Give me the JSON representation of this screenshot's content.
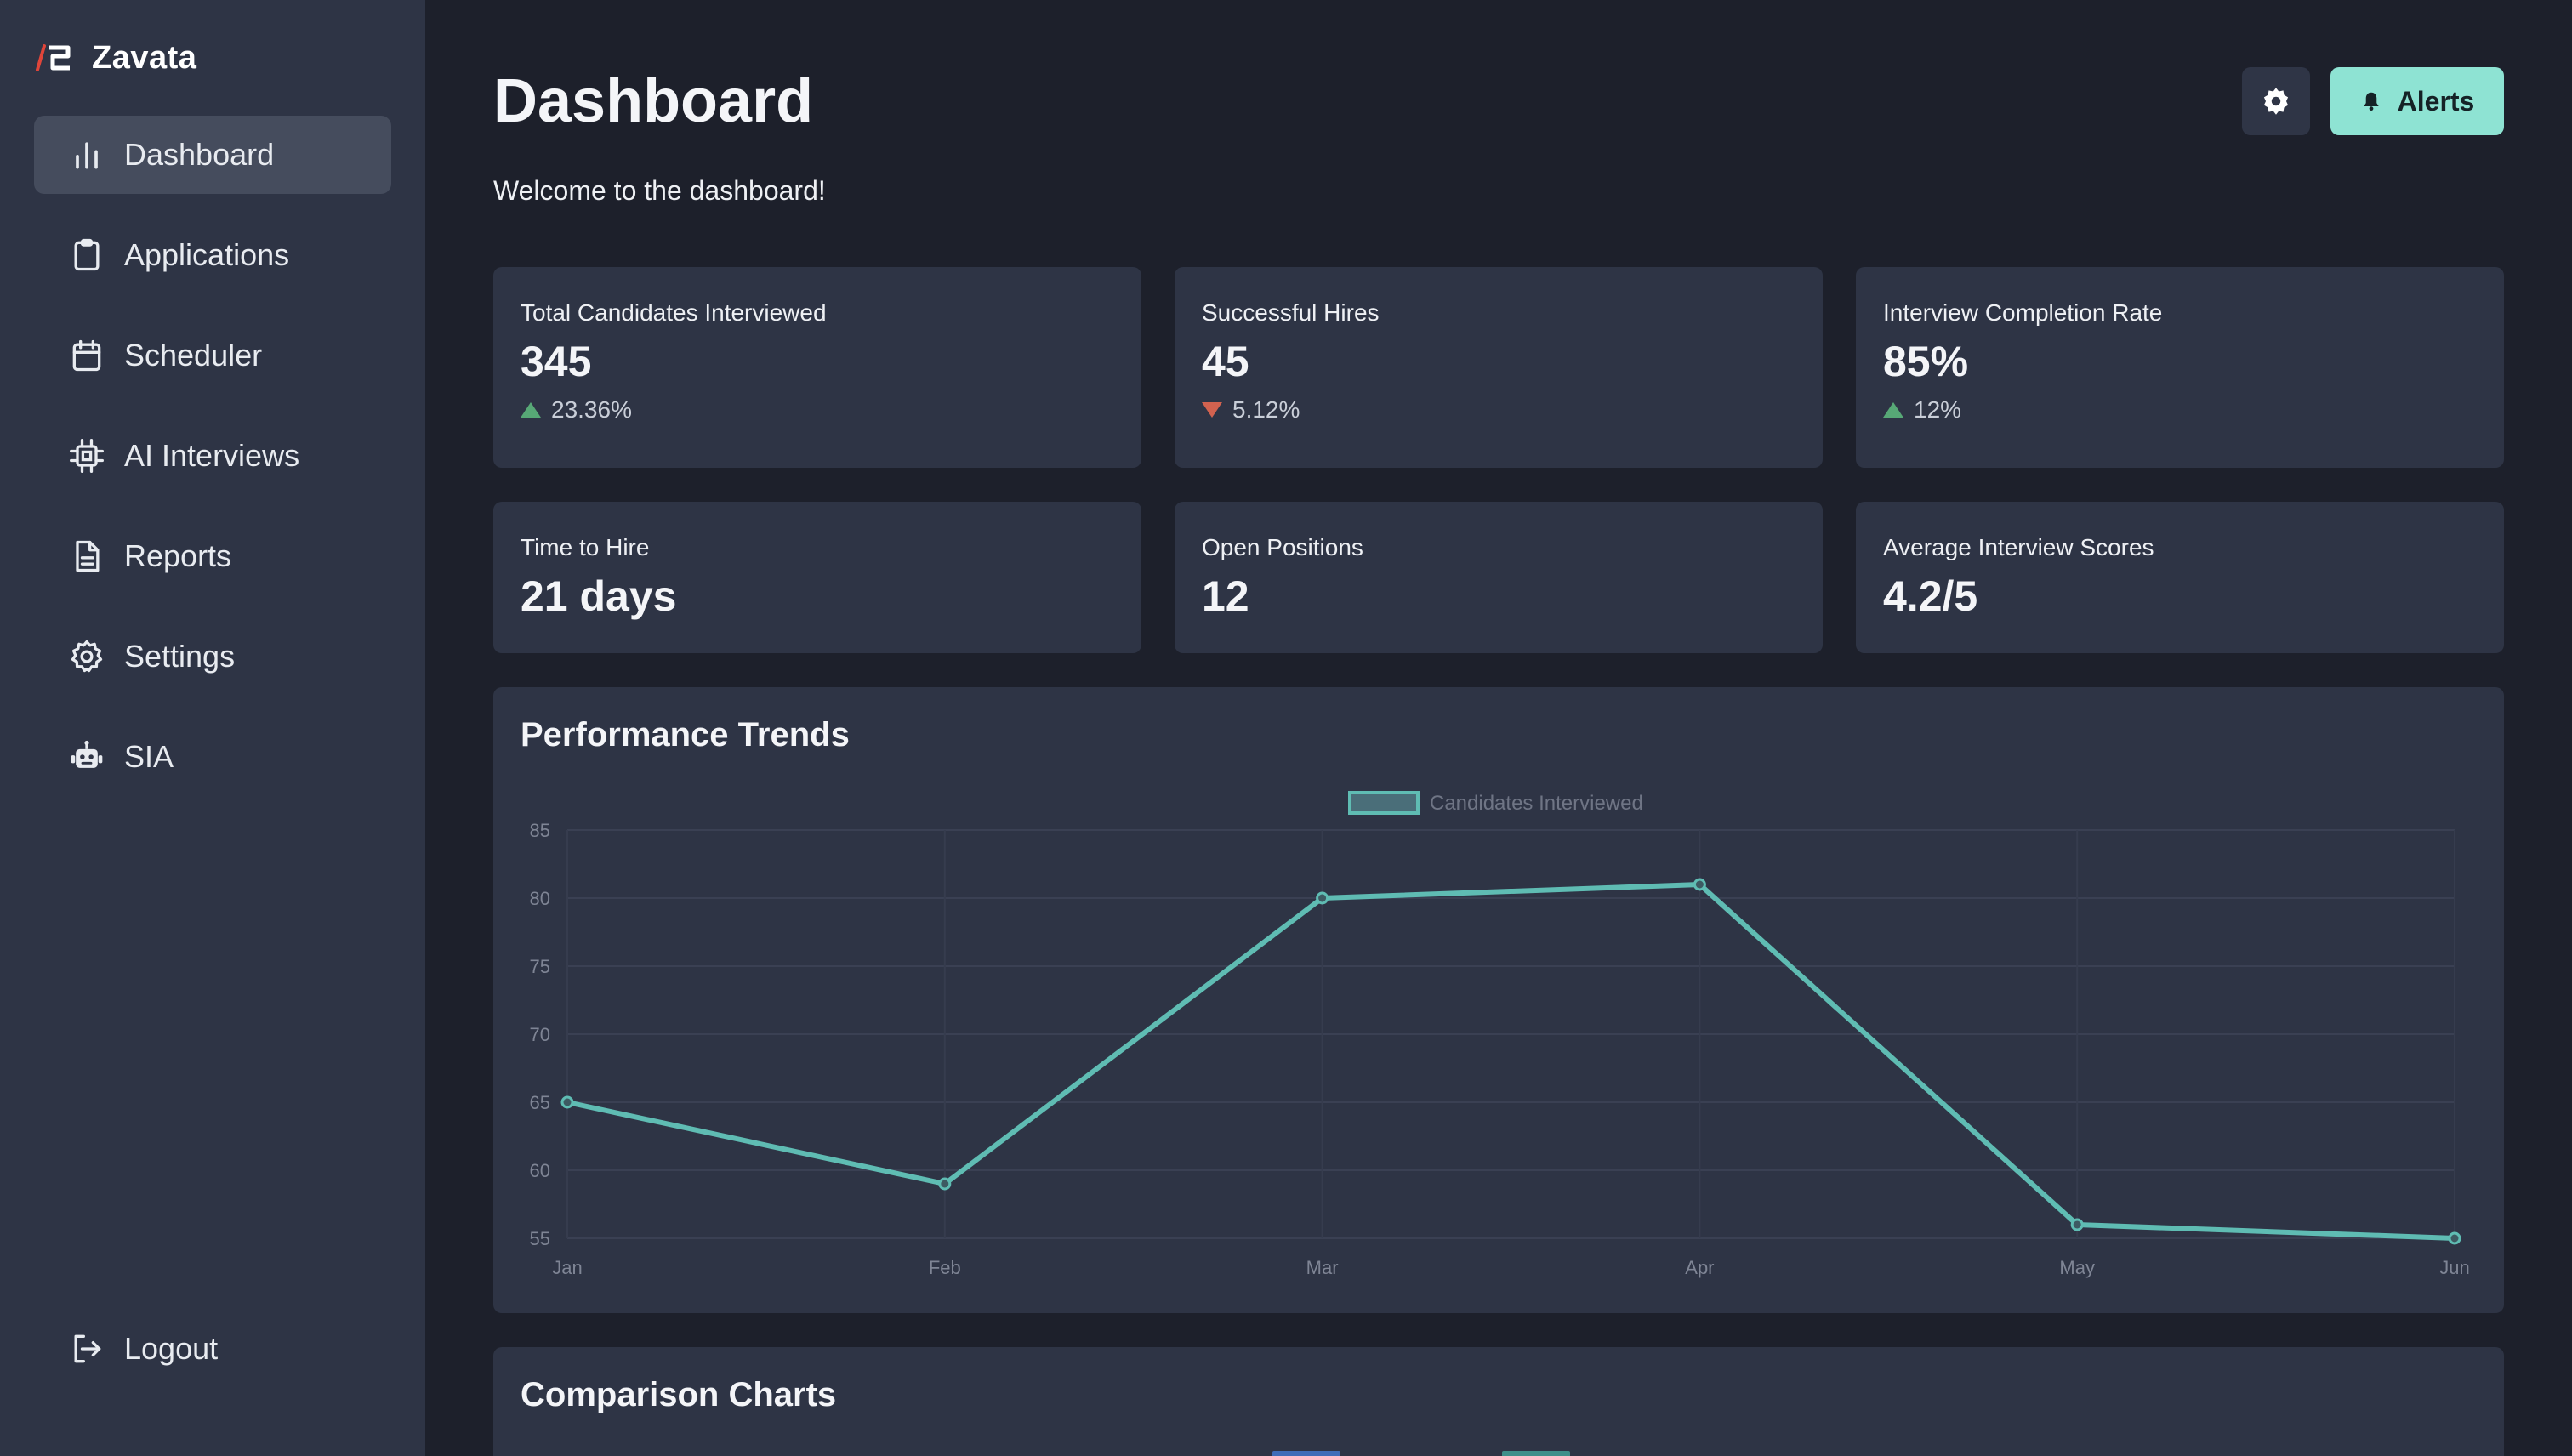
{
  "app": {
    "name": "Zavata"
  },
  "sidebar": {
    "items": [
      {
        "label": "Dashboard",
        "icon": "bar-chart-icon",
        "active": true
      },
      {
        "label": "Applications",
        "icon": "clipboard-icon"
      },
      {
        "label": "Scheduler",
        "icon": "calendar-icon"
      },
      {
        "label": "AI Interviews",
        "icon": "cpu-icon"
      },
      {
        "label": "Reports",
        "icon": "document-icon"
      },
      {
        "label": "Settings",
        "icon": "gear-icon"
      },
      {
        "label": "SIA",
        "icon": "robot-icon"
      }
    ],
    "logout_label": "Logout"
  },
  "header": {
    "title": "Dashboard",
    "welcome": "Welcome to the dashboard!",
    "alerts_label": "Alerts"
  },
  "stats": [
    {
      "label": "Total Candidates Interviewed",
      "value": "345",
      "change": "23.36%",
      "direction": "up"
    },
    {
      "label": "Successful Hires",
      "value": "45",
      "change": "5.12%",
      "direction": "down"
    },
    {
      "label": "Interview Completion Rate",
      "value": "85%",
      "change": "12%",
      "direction": "up"
    },
    {
      "label": "Time to Hire",
      "value": "21 days"
    },
    {
      "label": "Open Positions",
      "value": "12"
    },
    {
      "label": "Average Interview Scores",
      "value": "4.2/5"
    }
  ],
  "performance": {
    "title": "Performance Trends"
  },
  "comparison": {
    "title": "Comparison Charts"
  },
  "colors": {
    "accent": "#8ee3d3",
    "line": "#5fbcb3",
    "up": "#57a876",
    "down": "#d2624f"
  },
  "chart_data": {
    "type": "line",
    "title": "Performance Trends",
    "categories": [
      "Jan",
      "Feb",
      "Mar",
      "Apr",
      "May",
      "Jun"
    ],
    "series": [
      {
        "name": "Candidates Interviewed",
        "values": [
          65,
          59,
          80,
          81,
          56,
          55
        ]
      }
    ],
    "ylim": [
      55,
      85
    ],
    "yticks": [
      55,
      60,
      65,
      70,
      75,
      80,
      85
    ],
    "grid": true,
    "legend": "top-center"
  }
}
